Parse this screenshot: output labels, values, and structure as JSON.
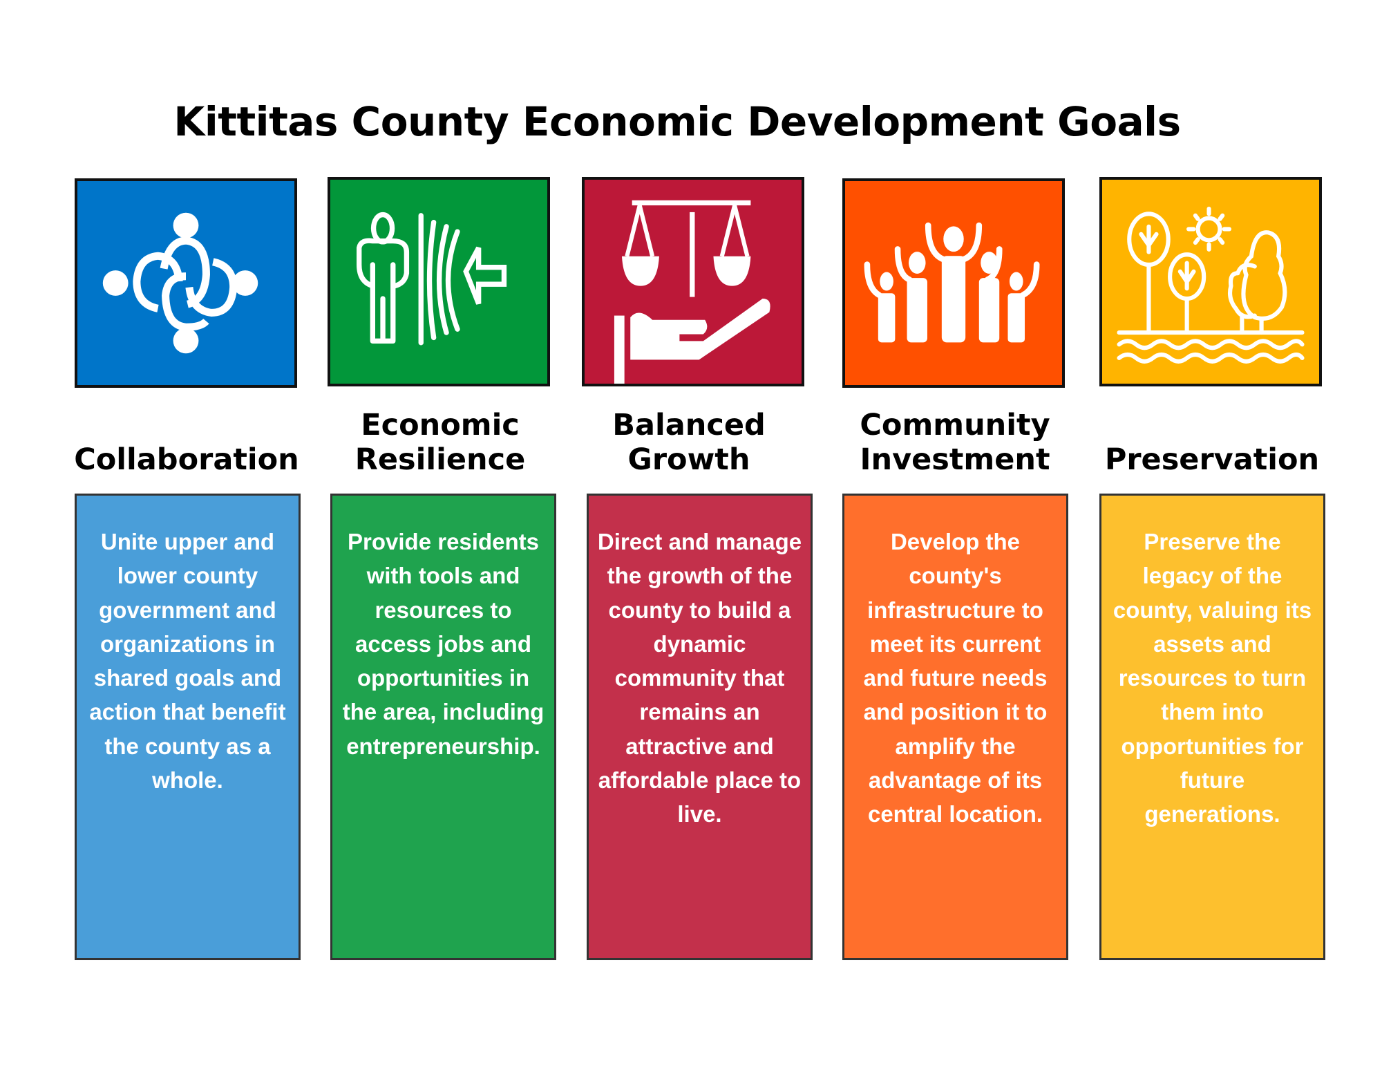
{
  "title": "Kittitas County Economic Development Goals",
  "goals": [
    {
      "label": "Collaboration",
      "icon": "collaboration-rings-icon",
      "icon_color": "#0075c9",
      "box_color": "#4a9ed9",
      "text": "Unite upper and lower county government and organizations in shared goals and action that benefit the county as a whole."
    },
    {
      "label": "Economic Resilience",
      "icon": "person-shield-icon",
      "icon_color": "#02973a",
      "box_color": "#1fa34e",
      "text": "Provide residents with tools and resources to access jobs and opportunities in the area, including entrepreneurship."
    },
    {
      "label": "Balanced Growth",
      "icon": "scales-hand-icon",
      "icon_color": "#bc1838",
      "box_color": "#c3304b",
      "text": "Direct and manage the growth of the county to build a dynamic community that remains an attractive and affordable place to live."
    },
    {
      "label": "Community Investment",
      "icon": "people-cheering-icon",
      "icon_color": "#ff5000",
      "box_color": "#ff6f2c",
      "text": "Develop the county's infrastructure to meet its current and future needs and position it to amplify the advantage of its central location."
    },
    {
      "label": "Preservation",
      "icon": "trees-sun-water-icon",
      "icon_color": "#ffb400",
      "box_color": "#fdc02e",
      "text": "Preserve the legacy of the county, valuing its assets and resources to turn them into opportunities for future generations."
    }
  ]
}
